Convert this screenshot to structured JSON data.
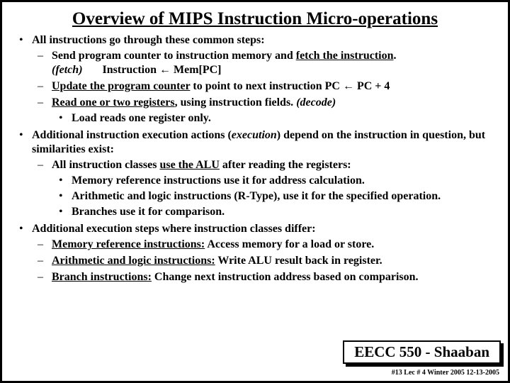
{
  "title": "Overview of MIPS Instruction Micro-operations",
  "p1": {
    "lead": "All instructions go through these common steps:",
    "s1a": "Send program counter to instruction memory and ",
    "s1b": "fetch the instruction",
    "s1c": ".",
    "s1d": "(fetch)",
    "s1e": "Instruction  ←  Mem[PC]",
    "s2a": "Update the program counter",
    "s2b": " to point to next instruction   PC  ←   PC + 4",
    "s3a": "Read one or two registers",
    "s3b": ", using instruction fields. ",
    "s3c": "(decode)",
    "s3sub": "Load reads one register only."
  },
  "p2": {
    "lead_a": "Additional instruction execution actions (",
    "lead_b": "execution",
    "lead_c": ") depend on the instruction in question, but similarities exist:",
    "s1a": "All instruction classes ",
    "s1b": "use the ALU",
    "s1c": " after reading the registers:",
    "sub1": "Memory reference instructions use it for address calculation.",
    "sub2": "Arithmetic and logic instructions (R-Type),  use it for the specified operation.",
    "sub3": "Branches use it for comparison."
  },
  "p3": {
    "lead": "Additional execution steps where instruction classes differ:",
    "s1a": "Memory reference instructions:",
    "s1b": "  Access memory for a load or store.",
    "s2a": "Arithmetic and logic instructions:",
    "s2b": "  Write ALU result back in register.",
    "s3a": "Branch instructions:",
    "s3b": "  Change next instruction address based on comparison."
  },
  "footer": {
    "course": "EECC 550 - Shaaban",
    "meta": "#13   Lec # 4   Winter 2005   12-13-2005"
  }
}
